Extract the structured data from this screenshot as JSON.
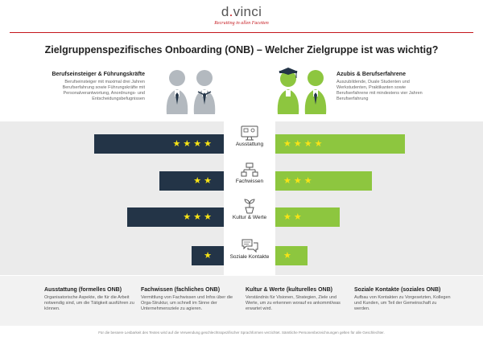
{
  "header": {
    "logo_prefix": "d",
    "logo_accent": ".",
    "logo_suffix": "vinci",
    "tagline": "Recruiting in allen Facetten"
  },
  "title": "Zielgruppenspezifisches Onboarding (ONB) – Welcher Zielgruppe ist was wichtig?",
  "groups": {
    "left": {
      "heading": "Berufseinsteiger & Führungskräfte",
      "text": "Berufseinsteiger mit maximal drei Jahren Berufserfahrung sowie Führungskräfte mit Personalverantwortung, Anordnungs- und Entscheidungsbefugnissen"
    },
    "right": {
      "heading": "Azubis & Berufserfahrene",
      "text": "Auszubildende, Duale Studenten und Werkstudenten, Praktikanten sowie Berufserfahrene mit mindestens vier Jahren Berufserfahrung"
    }
  },
  "categories": [
    {
      "label": "Ausstattung",
      "icon": "monitor-icon",
      "left_stars": "★★★★",
      "right_stars": "★★★★",
      "left_rating": 4,
      "right_rating": 4
    },
    {
      "label": "Fachwissen",
      "icon": "org-chart-icon",
      "left_stars": "★★",
      "right_stars": "★★★",
      "left_rating": 2,
      "right_rating": 3
    },
    {
      "label": "Kultur & Werte",
      "icon": "plant-icon",
      "left_stars": "★★★",
      "right_stars": "★★",
      "left_rating": 3,
      "right_rating": 2
    },
    {
      "label": "Soziale Kontakte",
      "icon": "chat-bubbles-icon",
      "left_stars": "★",
      "right_stars": "★",
      "left_rating": 1,
      "right_rating": 1
    }
  ],
  "info": [
    {
      "heading": "Ausstattung (formelles ONB)",
      "text": "Organisatorische Aspekte, die für die Arbeit notwendig sind, um die Tätigkeit ausführen zu können."
    },
    {
      "heading": "Fachwissen (fachliches ONB)",
      "text": "Vermittlung von Fachwissen und Infos über die Orga-Struktur, um schnell im Sinne der Unternehmensziele zu agieren."
    },
    {
      "heading": "Kultur & Werte (kulturelles ONB)",
      "text": "Verständnis für Visionen, Strategien, Ziele und Werte, um zu erkennen worauf es ankommt/was erwartet wird."
    },
    {
      "heading": "Soziale Kontakte (soziales ONB)",
      "text": "Aufbau von Kontakten zu Vorgesetzten, Kollegen und Kunden, um Teil der Gemeinschaft zu werden."
    }
  ],
  "footnote": "Für die bessere Lesbarkeit des Textes wird auf die Verwendung geschlechtsspezifischer Sprachformen verzichtet. Sämtliche Personenbezeichnungen gelten für alle Geschlechter.",
  "colors": {
    "dark_bar": "#233447",
    "green_bar": "#8dc63f",
    "star": "#f7e316",
    "accent": "#c4161c"
  }
}
